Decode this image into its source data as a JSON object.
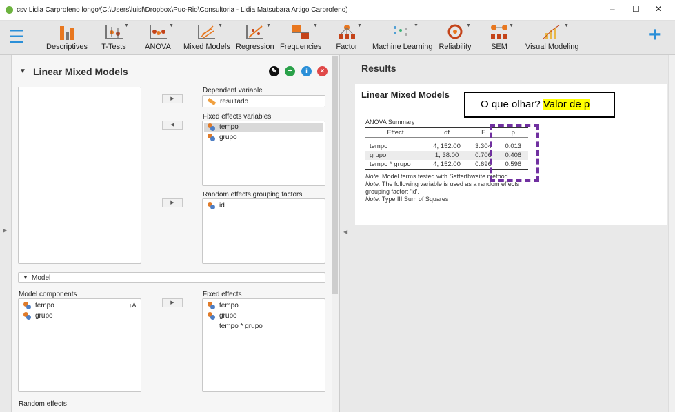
{
  "window": {
    "title": "csv Lidia Carprofeno longo*",
    "path": "(C:\\Users\\luisf\\Dropbox\\Puc-Rio\\Consultoria - Lidia Matsubara Artigo Carprofeno)",
    "minimize": "–",
    "maximize": "☐",
    "close": "✕"
  },
  "toolbar": {
    "items": [
      {
        "label": "Descriptives"
      },
      {
        "label": "T-Tests"
      },
      {
        "label": "ANOVA"
      },
      {
        "label": "Mixed Models"
      },
      {
        "label": "Regression"
      },
      {
        "label": "Frequencies"
      },
      {
        "label": "Factor"
      },
      {
        "label": "Machine Learning"
      },
      {
        "label": "Reliability"
      },
      {
        "label": "SEM"
      },
      {
        "label": "Visual Modeling"
      }
    ],
    "menu": "☰",
    "add": "+"
  },
  "analysis": {
    "title": "Linear Mixed Models",
    "collapse": "▼",
    "dependent_label": "Dependent variable",
    "dependent_value": "resultado",
    "fixed_label": "Fixed effects variables",
    "fixed": [
      "tempo",
      "grupo"
    ],
    "random_label": "Random effects grouping factors",
    "random": [
      "id"
    ],
    "model_section": "Model",
    "components_label": "Model components",
    "components": [
      "tempo",
      "grupo"
    ],
    "fixed_effects_label": "Fixed effects",
    "fixed_effects": [
      "tempo",
      "grupo",
      "tempo * grupo"
    ],
    "random_effects_label": "Random effects"
  },
  "results": {
    "header": "Results",
    "title": "Linear Mixed Models",
    "table_title": "ANOVA Summary",
    "columns": [
      "Effect",
      "df",
      "F",
      "p"
    ],
    "rows": [
      [
        "tempo",
        "4, 152.00",
        "3.304",
        "0.013"
      ],
      [
        "grupo",
        "1, 38.00",
        "0.706",
        "0.406"
      ],
      [
        "tempo * grupo",
        "4, 152.00",
        "0.696",
        "0.596"
      ]
    ],
    "note_label": "Note.",
    "notes": [
      "Model terms tested with Satterthwaite method.",
      "The following variable is used as a random effects grouping factor: 'id'.",
      "Type III Sum of Squares"
    ]
  },
  "annotation": {
    "question": "O que olhar?",
    "answer": "Valor de p",
    "highlight": "#ffff00",
    "box_color": "#7030a0"
  }
}
